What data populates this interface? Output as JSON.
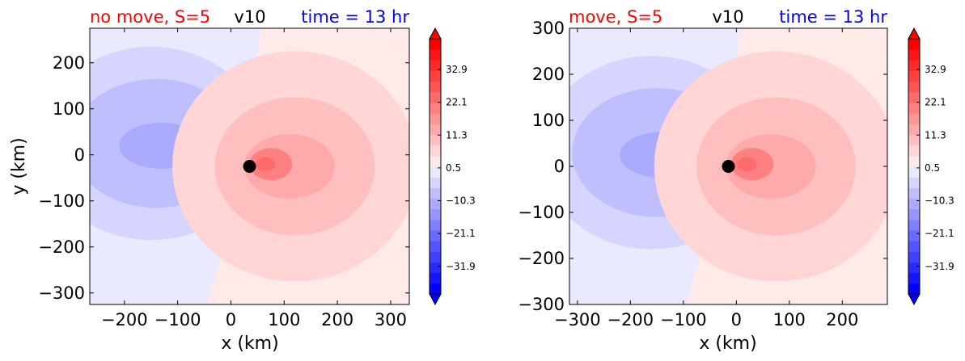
{
  "chart_data": [
    {
      "type": "heatmap",
      "subtype": "filled-contour",
      "title_left": "no move, S=5",
      "title_center": "v10",
      "title_right": "time = 13 hr",
      "title_left_color": "#ff0000",
      "title_center_color": "#000000",
      "title_right_color": "#0000ff",
      "xlabel": "x (km)",
      "ylabel": "y (km)",
      "xlim": [
        -265,
        335
      ],
      "ylim": [
        -325,
        275
      ],
      "xticks": [
        -200,
        -100,
        0,
        100,
        200,
        300
      ],
      "xtick_labels": [
        "−200",
        "−100",
        "0",
        "100",
        "200",
        "300"
      ],
      "yticks": [
        200,
        100,
        0,
        -100,
        -200,
        -300
      ],
      "ytick_labels": [
        "200",
        "100",
        "0",
        "−100",
        "−200",
        "−300"
      ],
      "center_marker": {
        "x": 35,
        "y": -25
      },
      "negative_lobe_center": {
        "x": -150,
        "y": 25
      },
      "positive_lobe_center": {
        "x": 110,
        "y": -25
      },
      "grid": false
    },
    {
      "type": "heatmap",
      "subtype": "filled-contour",
      "title_left": "move, S=5",
      "title_center": "v10",
      "title_right": "time = 13 hr",
      "title_left_color": "#ff0000",
      "title_center_color": "#000000",
      "title_right_color": "#0000ff",
      "xlabel": "x (km)",
      "ylabel": "",
      "xlim": [
        -315,
        285
      ],
      "ylim": [
        -300,
        300
      ],
      "xticks": [
        -300,
        -200,
        -100,
        0,
        100,
        200
      ],
      "xtick_labels": [
        "−300",
        "−200",
        "−100",
        "0",
        "100",
        "200"
      ],
      "yticks": [
        300,
        200,
        100,
        0,
        -100,
        -200,
        -300
      ],
      "ytick_labels": [
        "300",
        "200",
        "100",
        "0",
        "−100",
        "−200",
        "−300"
      ],
      "center_marker": {
        "x": -15,
        "y": 0
      },
      "negative_lobe_center": {
        "x": -160,
        "y": 30
      },
      "positive_lobe_center": {
        "x": 65,
        "y": 0
      },
      "grid": false
    }
  ],
  "colorbar": {
    "tick_values": [
      32.9,
      22.1,
      11.3,
      0.5,
      -10.3,
      -21.1,
      -31.9
    ],
    "tick_labels": [
      "32.9",
      "22.1",
      "11.3",
      "0.5",
      "−10.3",
      "−21.1",
      "−31.9"
    ],
    "range": [
      -41,
      43
    ],
    "extend": "both",
    "colormap": "bwr",
    "low_color": "#0000ff",
    "mid_color": "#ffffff",
    "high_color": "#ff0000"
  }
}
